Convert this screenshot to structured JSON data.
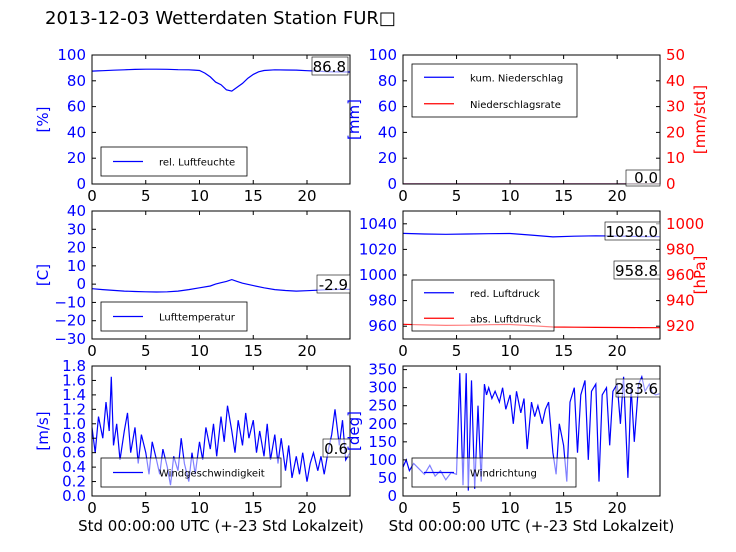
{
  "title": "2013-12-03 Wetterdaten Station FUR□",
  "colors": {
    "primary": "#0000ff",
    "secondary": "#ff0000"
  },
  "chart_data": [
    {
      "type": "line",
      "id": "humidity",
      "ylabel": "[%]",
      "xlabel": "",
      "xlim": [
        0,
        24
      ],
      "ylim": [
        0,
        100
      ],
      "xticks": [
        0,
        5,
        10,
        15,
        20
      ],
      "yticks": [
        0,
        20,
        40,
        60,
        80,
        100
      ],
      "grid": false,
      "legend_position": "bottom-left",
      "annotation": "86.8",
      "series": [
        {
          "name": "rel. Luftfeuchte",
          "color": "#0000ff",
          "x": [
            0,
            0.5,
            1,
            2,
            3,
            4,
            5,
            6,
            7,
            8,
            9,
            9.5,
            10,
            10.5,
            11,
            11.5,
            12,
            12.5,
            13,
            13.5,
            14,
            14.5,
            15,
            15.5,
            16,
            17,
            18,
            19,
            20,
            21,
            22,
            23,
            24
          ],
          "y": [
            87.5,
            87.7,
            87.8,
            88.2,
            88.5,
            88.8,
            89,
            89,
            88.9,
            88.6,
            88.5,
            88.3,
            88,
            86,
            83,
            79,
            77,
            73,
            72,
            75,
            78,
            82,
            85,
            87,
            88,
            88.5,
            88.4,
            88.3,
            87.8,
            87.5,
            87,
            86.9,
            86.8
          ]
        }
      ]
    },
    {
      "type": "line",
      "id": "precipitation",
      "ylabel": "[mm]",
      "ylabel_right": "[mm/std]",
      "xlabel": "",
      "xlim": [
        0,
        24
      ],
      "ylim": [
        0,
        100
      ],
      "ylim_right": [
        0,
        50
      ],
      "xticks": [
        0,
        5,
        10,
        15,
        20
      ],
      "yticks": [
        0,
        20,
        40,
        60,
        80,
        100
      ],
      "yticks_right": [
        0,
        10,
        20,
        30,
        40,
        50
      ],
      "grid": false,
      "legend_position": "top-left",
      "annotation": "0.0",
      "series": [
        {
          "name": "kum. Niederschlag",
          "color": "#0000ff",
          "x": [
            0,
            24
          ],
          "y": [
            0,
            0
          ]
        },
        {
          "name": "Niederschlagsrate",
          "color": "#ff0000",
          "x": [
            0,
            24
          ],
          "y": [
            0,
            0
          ]
        }
      ]
    },
    {
      "type": "line",
      "id": "temperature",
      "ylabel": "[C]",
      "xlabel": "",
      "xlim": [
        0,
        24
      ],
      "ylim": [
        -30,
        40
      ],
      "xticks": [
        0,
        5,
        10,
        15,
        20
      ],
      "yticks": [
        -30,
        -20,
        -10,
        0,
        10,
        20,
        30,
        40
      ],
      "grid": false,
      "legend_position": "bottom-left",
      "annotation": "-2.9",
      "series": [
        {
          "name": "Lufttemperatur",
          "color": "#0000ff",
          "x": [
            0,
            1,
            2,
            3,
            4,
            5,
            6,
            7,
            8,
            9,
            10,
            11,
            11.5,
            12,
            12.5,
            13,
            13.5,
            14,
            15,
            16,
            17,
            18,
            19,
            20,
            21,
            22,
            23,
            24
          ],
          "y": [
            -2.5,
            -3,
            -3.4,
            -3.8,
            -4,
            -4.2,
            -4.3,
            -4.2,
            -3.8,
            -3,
            -2,
            -1,
            0,
            0.8,
            1.5,
            2.5,
            1.5,
            0.5,
            -0.8,
            -2,
            -3,
            -3.5,
            -3.8,
            -3.6,
            -3.3,
            -3,
            -2.9,
            -2.9
          ]
        }
      ]
    },
    {
      "type": "line",
      "id": "pressure",
      "ylabel": "",
      "ylabel_right": "[hPa]",
      "xlabel": "",
      "xlim": [
        0,
        24
      ],
      "ylim": [
        950,
        1050
      ],
      "ylim_right": [
        910,
        1010
      ],
      "xticks": [
        0,
        5,
        10,
        15,
        20
      ],
      "yticks": [
        960,
        980,
        1000,
        1020,
        1040
      ],
      "yticks_right": [
        920,
        940,
        960,
        980,
        1000
      ],
      "grid": false,
      "legend_position": "bottom-left",
      "annotations": [
        "1030.0",
        "958.8"
      ],
      "series": [
        {
          "name": "red. Luftdruck",
          "color": "#0000ff",
          "x": [
            0,
            2,
            4,
            6,
            8,
            10,
            12,
            14,
            16,
            18,
            20,
            22,
            24
          ],
          "y": [
            1032.5,
            1032,
            1031.8,
            1032,
            1032.3,
            1032.4,
            1031.2,
            1029.8,
            1030.3,
            1030.6,
            1030.4,
            1030.1,
            1030
          ]
        },
        {
          "name": "abs. Luftdruck",
          "color": "#ff0000",
          "x": [
            0,
            2,
            4,
            6,
            8,
            10,
            12,
            14,
            16,
            18,
            20,
            22,
            24
          ],
          "y": [
            961.5,
            961,
            960.6,
            960.8,
            961.2,
            961.3,
            960.4,
            959.4,
            959.2,
            959.1,
            959,
            958.9,
            958.8
          ]
        }
      ]
    },
    {
      "type": "line",
      "id": "windspeed",
      "ylabel": "[m/s]",
      "xlabel": "Std 00:00:00 UTC (+-23 Std Lokalzeit)",
      "xlim": [
        0,
        24
      ],
      "ylim": [
        0,
        1.8
      ],
      "xticks": [
        0,
        5,
        10,
        15,
        20
      ],
      "yticks": [
        0.0,
        0.2,
        0.4,
        0.6,
        0.8,
        1.0,
        1.2,
        1.4,
        1.6,
        1.8
      ],
      "ytick_labels": [
        "0.0",
        "0.2",
        "0.4",
        "0.6",
        "0.8",
        "1.0",
        "1.2",
        "1.4",
        "1.6",
        "1.8"
      ],
      "grid": false,
      "legend_position": "bottom-left",
      "annotation": "0.6",
      "series": [
        {
          "name": "Windgeschwindigkeit",
          "color": "#0000ff",
          "x": [
            0,
            0.3,
            0.6,
            1,
            1.3,
            1.6,
            1.8,
            2,
            2.3,
            2.6,
            3,
            3.3,
            3.6,
            4,
            4.3,
            4.6,
            5,
            5.3,
            5.6,
            6,
            6.3,
            6.6,
            7,
            7.3,
            7.6,
            8,
            8.3,
            8.6,
            9,
            9.3,
            9.6,
            10,
            10.3,
            10.6,
            11,
            11.3,
            11.6,
            12,
            12.3,
            12.6,
            13,
            13.3,
            13.6,
            14,
            14.3,
            14.6,
            15,
            15.3,
            15.6,
            16,
            16.3,
            16.6,
            17,
            17.3,
            17.6,
            18,
            18.3,
            18.6,
            19,
            19.3,
            19.6,
            20,
            20.3,
            20.6,
            21,
            21.3,
            21.6,
            22,
            22.3,
            22.6,
            23,
            23.3,
            23.6,
            24
          ],
          "y": [
            0.95,
            0.6,
            1.1,
            0.8,
            1.3,
            0.9,
            1.65,
            0.7,
            1.0,
            0.5,
            0.9,
            1.15,
            0.6,
            0.95,
            0.45,
            0.85,
            0.6,
            0.3,
            0.75,
            0.5,
            0.3,
            0.65,
            0.4,
            0.15,
            0.55,
            0.35,
            0.8,
            0.45,
            0.2,
            0.6,
            0.3,
            0.75,
            0.5,
            0.95,
            0.65,
            1.0,
            0.55,
            1.1,
            0.75,
            1.25,
            0.9,
            0.6,
            1.05,
            0.7,
            1.15,
            0.8,
            1.05,
            0.6,
            0.9,
            0.55,
            1.0,
            0.5,
            0.85,
            0.45,
            0.8,
            0.35,
            0.7,
            0.25,
            0.55,
            0.3,
            0.6,
            0.2,
            0.45,
            0.6,
            0.35,
            0.55,
            0.3,
            0.65,
            0.85,
            1.2,
            0.7,
            1.05,
            0.5,
            0.6
          ]
        }
      ]
    },
    {
      "type": "line",
      "id": "winddirection",
      "ylabel": "[deg]",
      "xlabel": "Std 00:00:00 UTC (+-23 Std Lokalzeit)",
      "xlim": [
        0,
        24
      ],
      "ylim": [
        0,
        360
      ],
      "xticks": [
        0,
        5,
        10,
        15,
        20
      ],
      "yticks": [
        0,
        50,
        100,
        150,
        200,
        250,
        300,
        350
      ],
      "grid": false,
      "legend_position": "bottom-left",
      "annotation": "283.6",
      "series": [
        {
          "name": "Windrichtung",
          "color": "#0000ff",
          "x": [
            0,
            0.3,
            0.6,
            1,
            1.5,
            2,
            2.5,
            3,
            3.5,
            4,
            4.5,
            5,
            5.3,
            5.6,
            5.9,
            6.1,
            6.4,
            6.7,
            7,
            7.3,
            7.6,
            7.8,
            8,
            8.3,
            8.6,
            9,
            9.3,
            9.6,
            10,
            10.3,
            10.6,
            11,
            11.3,
            11.6,
            12,
            12.3,
            12.6,
            13,
            13.3,
            13.6,
            14,
            14.3,
            14.6,
            15,
            15.3,
            15.6,
            16,
            16.3,
            16.6,
            17,
            17.3,
            17.6,
            18,
            18.3,
            18.6,
            19,
            19.3,
            19.6,
            20,
            20.3,
            20.6,
            21,
            21.3,
            21.6,
            22,
            22.3,
            22.6,
            23,
            23.3,
            23.6,
            24
          ],
          "y": [
            80,
            100,
            70,
            90,
            75,
            60,
            85,
            55,
            70,
            45,
            65,
            60,
            340,
            30,
            340,
            15,
            320,
            20,
            250,
            40,
            310,
            280,
            300,
            270,
            290,
            260,
            300,
            240,
            280,
            200,
            290,
            230,
            270,
            130,
            260,
            220,
            250,
            200,
            240,
            260,
            120,
            60,
            200,
            140,
            40,
            260,
            300,
            120,
            280,
            320,
            100,
            290,
            310,
            40,
            280,
            300,
            140,
            290,
            310,
            200,
            330,
            50,
            300,
            150,
            310,
            330,
            290,
            310,
            285,
            280,
            283.6
          ]
        }
      ]
    }
  ]
}
